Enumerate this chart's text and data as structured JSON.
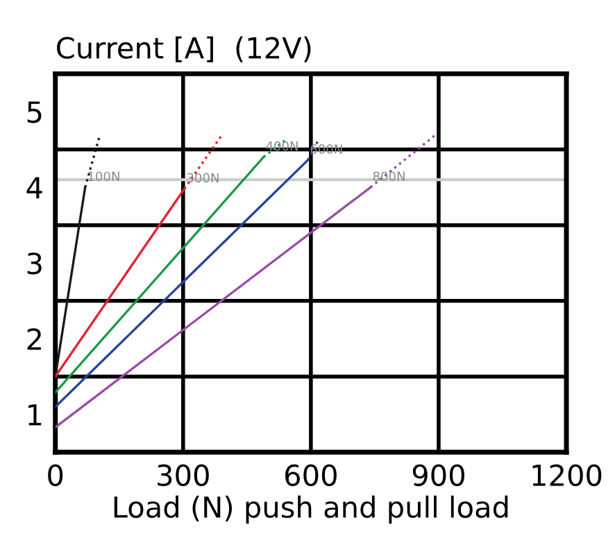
{
  "chart_data": {
    "type": "line",
    "title": "Current [A]  (12V)",
    "xlabel": "Load (N) push and pull load",
    "xlim": [
      0,
      1200
    ],
    "xticks": [
      0,
      300,
      600,
      900,
      1200
    ],
    "ylim": [
      0.5,
      5.5
    ],
    "yticks": [
      1,
      2,
      3,
      4,
      5
    ],
    "grid": "x",
    "line_style": "solid",
    "marker": "none",
    "series": [
      {
        "name": "100N",
        "color": "#1a1a1a",
        "x": [
          0,
          70
        ],
        "values": [
          1.5,
          4.0
        ]
      },
      {
        "color": "#1a1a1a",
        "x": [
          70,
          105
        ],
        "values": [
          4.0,
          4.7
        ],
        "line_style": "dotted"
      },
      {
        "name": "300N",
        "color": "#e8202a",
        "x": [
          0,
          303
        ],
        "values": [
          1.5,
          3.98
        ]
      },
      {
        "color": "#e8202a",
        "x": [
          303,
          391
        ],
        "values": [
          3.98,
          4.69
        ],
        "line_style": "dotted"
      },
      {
        "name": "400N",
        "color": "#1a9a4a",
        "x": [
          0,
          489
        ],
        "values": [
          1.29,
          4.4
        ]
      },
      {
        "color": "#1a9a4a",
        "x": [
          489,
          544
        ],
        "values": [
          4.4,
          4.64
        ],
        "line_style": "dotted"
      },
      {
        "name": "600N",
        "color": "#24449a",
        "x": [
          0,
          593
        ],
        "values": [
          1.1,
          4.36
        ]
      },
      {
        "color": "#24449a",
        "x": [
          593,
          619
        ],
        "values": [
          4.36,
          4.64
        ],
        "line_style": "dotted"
      },
      {
        "name": "800N",
        "color": "#9a4aa8",
        "x": [
          0,
          740
        ],
        "values": [
          0.83,
          4.0
        ]
      },
      {
        "color": "#9a4aa8",
        "x": [
          740,
          890
        ],
        "values": [
          4.0,
          4.68
        ],
        "line_style": "dotted"
      }
    ],
    "ref_lines": [
      {
        "axis": "y",
        "value": 1.5,
        "color": "#000000"
      },
      {
        "axis": "y",
        "value": 2.5,
        "color": "#000000"
      },
      {
        "axis": "y",
        "value": 3.5,
        "color": "#000000"
      },
      {
        "axis": "y",
        "value": 4.5,
        "color": "#000000"
      },
      {
        "axis": "y",
        "value": 4.1,
        "color": "#cccccc"
      }
    ]
  }
}
